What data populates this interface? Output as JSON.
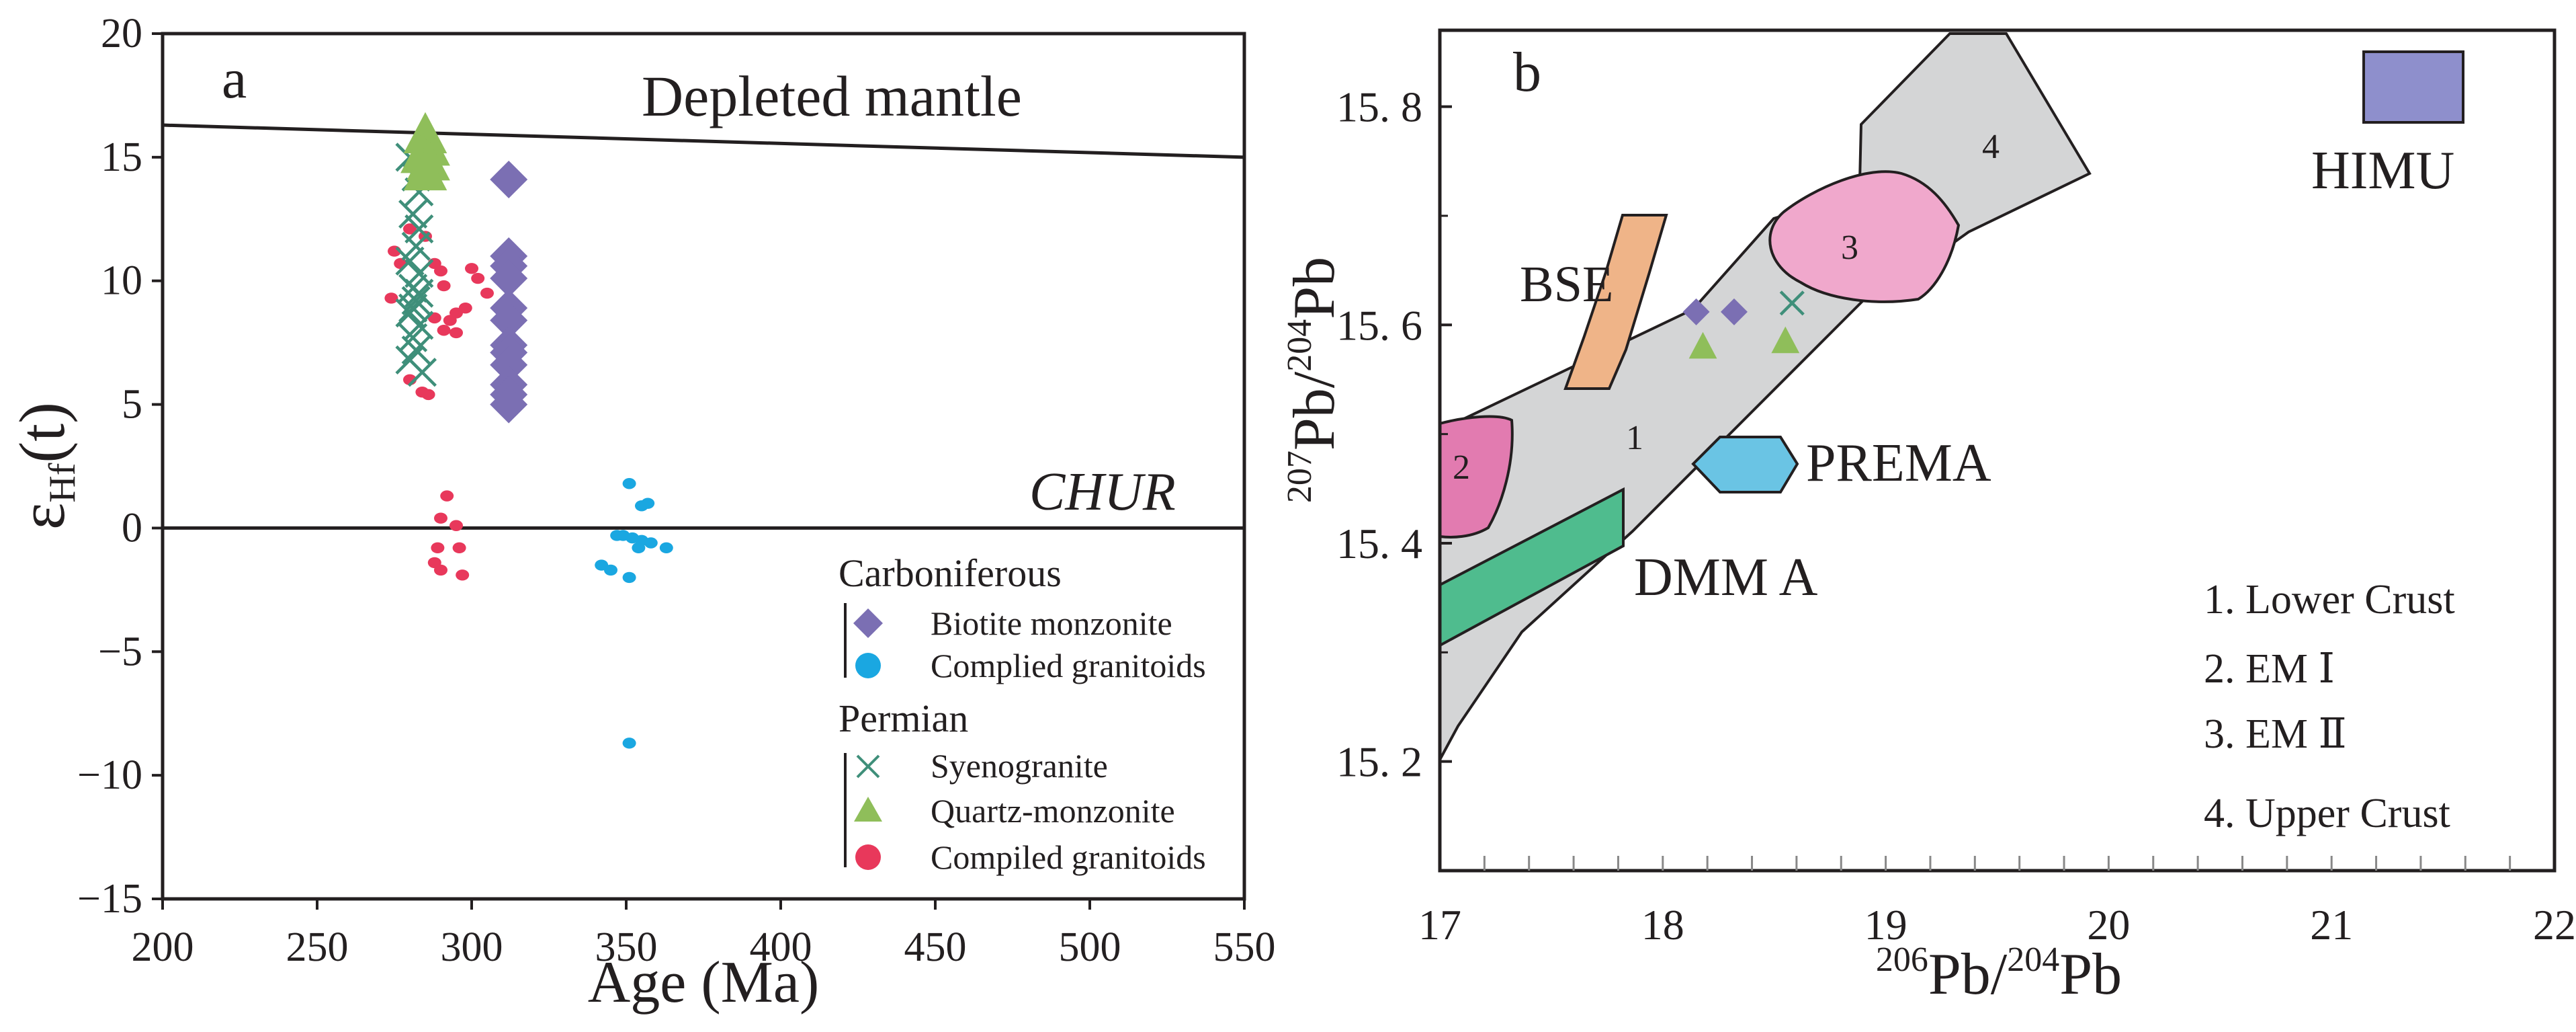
{
  "colors": {
    "axis": "#231f20",
    "biotite": "#7b6fb3",
    "compiled_carb": "#1aa7e1",
    "syeno": "#3f8f7a",
    "quartz": "#8fbe5a",
    "compiled_perm": "#e8385b",
    "field_gray": "#d4d5d6",
    "em1": "#e27bb0",
    "em2": "#f0a8cc",
    "bse": "#efb488",
    "prema": "#6ac4e4",
    "dmma": "#4fbc8e",
    "himu": "#8e8fcc"
  },
  "chart_data": [
    {
      "type": "scatter",
      "panel_label": "a",
      "title": "",
      "xlabel": "Age (Ma)",
      "ylabel_main": "ε",
      "ylabel_sub": "Hf",
      "ylabel_tail": "(t)",
      "xlim": [
        200,
        550
      ],
      "ylim": [
        -15,
        20
      ],
      "xticks": [
        200,
        250,
        300,
        350,
        400,
        450,
        500,
        550
      ],
      "yticks": [
        -15,
        -10,
        -5,
        0,
        5,
        10,
        15,
        20
      ],
      "ytick_labels": [
        "−15",
        "−10",
        "−5",
        "0",
        "5",
        "10",
        "15",
        "20"
      ],
      "reference_lines": [
        {
          "name": "Depleted mantle",
          "points": [
            [
              200,
              16.3
            ],
            [
              550,
              15.0
            ]
          ]
        },
        {
          "name": "CHUR",
          "points": [
            [
              200,
              0
            ],
            [
              550,
              0
            ]
          ]
        }
      ],
      "annotations": [
        "Depleted mantle",
        "CHUR"
      ],
      "legend": {
        "placement": "bottom-right",
        "groups": [
          {
            "title": "Carboniferous",
            "entries": [
              "Biotite monzonite",
              "Complied granitoids"
            ]
          },
          {
            "title": "Permian",
            "entries": [
              "Syenogranite",
              "Quartz-monzonite",
              "Compiled granitoids"
            ]
          }
        ]
      },
      "series": [
        {
          "name": "Biotite monzonite",
          "marker": "diamond",
          "points": [
            [
              312,
              14.1
            ],
            [
              312,
              11.0
            ],
            [
              312,
              10.6
            ],
            [
              312,
              10.1
            ],
            [
              312,
              8.9
            ],
            [
              312,
              8.4
            ],
            [
              312,
              7.4
            ],
            [
              312,
              7.1
            ],
            [
              312,
              6.6
            ],
            [
              312,
              5.8
            ],
            [
              312,
              5.4
            ],
            [
              312,
              5.0
            ]
          ]
        },
        {
          "name": "Complied granitoids",
          "marker": "dot",
          "era": "Carboniferous",
          "points": [
            [
              351,
              1.8
            ],
            [
              357,
              1.0
            ],
            [
              355,
              0.9
            ],
            [
              349,
              -0.3
            ],
            [
              352,
              -0.4
            ],
            [
              347,
              -0.3
            ],
            [
              355,
              -0.5
            ],
            [
              354,
              -0.8
            ],
            [
              363,
              -0.8
            ],
            [
              358,
              -0.6
            ],
            [
              342,
              -1.5
            ],
            [
              345,
              -1.7
            ],
            [
              351,
              -2.0
            ],
            [
              351,
              -8.7
            ]
          ]
        },
        {
          "name": "Syenogranite",
          "marker": "cross",
          "points": [
            [
              280,
              15.0
            ],
            [
              282,
              14.2
            ],
            [
              283,
              13.6
            ],
            [
              281,
              12.7
            ],
            [
              283,
              12.1
            ],
            [
              282,
              11.4
            ],
            [
              280,
              10.8
            ],
            [
              283,
              10.3
            ],
            [
              281,
              9.7
            ],
            [
              282,
              9.2
            ],
            [
              280,
              8.7
            ],
            [
              283,
              8.2
            ],
            [
              281,
              7.7
            ],
            [
              282,
              7.2
            ],
            [
              280,
              6.8
            ],
            [
              284,
              6.3
            ],
            [
              283,
              9.5
            ],
            [
              281,
              8.9
            ]
          ]
        },
        {
          "name": "Quartz-monzonite",
          "marker": "triangle",
          "points": [
            [
              285,
              15.9
            ],
            [
              286,
              15.4
            ],
            [
              284,
              15.1
            ],
            [
              286,
              14.8
            ],
            [
              285,
              14.4
            ]
          ]
        },
        {
          "name": "Compiled granitoids",
          "marker": "dot",
          "era": "Permian",
          "points": [
            [
              275,
              11.2
            ],
            [
              277,
              10.7
            ],
            [
              274,
              9.3
            ],
            [
              280,
              12.1
            ],
            [
              285,
              11.8
            ],
            [
              288,
              10.7
            ],
            [
              290,
              10.4
            ],
            [
              300,
              10.5
            ],
            [
              302,
              10.1
            ],
            [
              291,
              9.8
            ],
            [
              288,
              8.5
            ],
            [
              293,
              8.4
            ],
            [
              295,
              8.7
            ],
            [
              298,
              8.9
            ],
            [
              305,
              9.5
            ],
            [
              291,
              8.0
            ],
            [
              295,
              7.9
            ],
            [
              280,
              6.0
            ],
            [
              284,
              5.5
            ],
            [
              286,
              5.4
            ],
            [
              292,
              1.3
            ],
            [
              290,
              0.4
            ],
            [
              295,
              0.1
            ],
            [
              289,
              -0.8
            ],
            [
              296,
              -0.8
            ],
            [
              288,
              -1.4
            ],
            [
              290,
              -1.7
            ],
            [
              297,
              -1.9
            ]
          ]
        }
      ]
    },
    {
      "type": "scatter",
      "panel_label": "b",
      "title": "",
      "xlabel_sup1": "206",
      "xlabel_mid": "Pb/",
      "xlabel_sup2": "204",
      "xlabel_end": "Pb",
      "ylabel_sup1": "207",
      "ylabel_mid": "Pb/",
      "ylabel_sup2": "204",
      "ylabel_end": "Pb",
      "xlim": [
        17,
        22
      ],
      "ylim": [
        15.1,
        15.87
      ],
      "xticks": [
        17,
        18,
        19,
        20,
        21,
        22
      ],
      "xtick_labels": [
        "17",
        "18",
        "19",
        "20",
        "21",
        "22"
      ],
      "yticks": [
        15.2,
        15.4,
        15.6,
        15.8
      ],
      "ytick_labels": [
        "15. 2",
        "15. 4",
        "15. 6",
        "15. 8"
      ],
      "fields": [
        {
          "name": "1",
          "label": "1"
        },
        {
          "name": "2",
          "label": "2"
        },
        {
          "name": "3",
          "label": "3"
        },
        {
          "name": "4",
          "label": "4"
        },
        {
          "name": "BSE",
          "label": "BSE"
        },
        {
          "name": "PREMA",
          "label": "PREMA"
        },
        {
          "name": "DMMA",
          "label": "DMM A"
        },
        {
          "name": "HIMU",
          "label": "HIMU"
        }
      ],
      "key": [
        "1. Lower Crust",
        "2. EM Ⅰ",
        "3. EM Ⅱ",
        "4. Upper Crust"
      ],
      "series": [
        {
          "name": "Biotite monzonite",
          "marker": "diamond",
          "points": [
            [
              18.15,
              15.612
            ],
            [
              18.32,
              15.612
            ]
          ]
        },
        {
          "name": "Quartz-monzonite",
          "marker": "triangle",
          "points": [
            [
              18.18,
              15.58
            ],
            [
              18.55,
              15.585
            ]
          ]
        },
        {
          "name": "Syenogranite",
          "marker": "cross",
          "points": [
            [
              18.58,
              15.62
            ]
          ]
        }
      ]
    }
  ]
}
